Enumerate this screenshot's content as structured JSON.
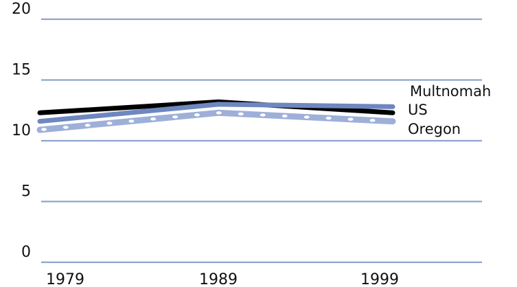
{
  "chart_data": {
    "type": "line",
    "title": "",
    "xlabel": "",
    "ylabel": "",
    "x": [
      "1979",
      "1989",
      "1999"
    ],
    "ylim": [
      0,
      20
    ],
    "y_ticks": [
      "0",
      "5",
      "10",
      "15",
      "20"
    ],
    "grid": true,
    "legend": "inline-right",
    "series": [
      {
        "name": "Multnomah",
        "values": [
          12.3,
          13.2,
          12.3
        ],
        "color": "#000000"
      },
      {
        "name": "US",
        "values": [
          11.6,
          13.0,
          12.8
        ],
        "color": "#6f87bf"
      },
      {
        "name": "Oregon",
        "values": [
          10.9,
          12.3,
          11.6
        ],
        "color": "#9eb0d8",
        "marker": "white-dots"
      }
    ],
    "grid_color": "#8ea3cf"
  }
}
